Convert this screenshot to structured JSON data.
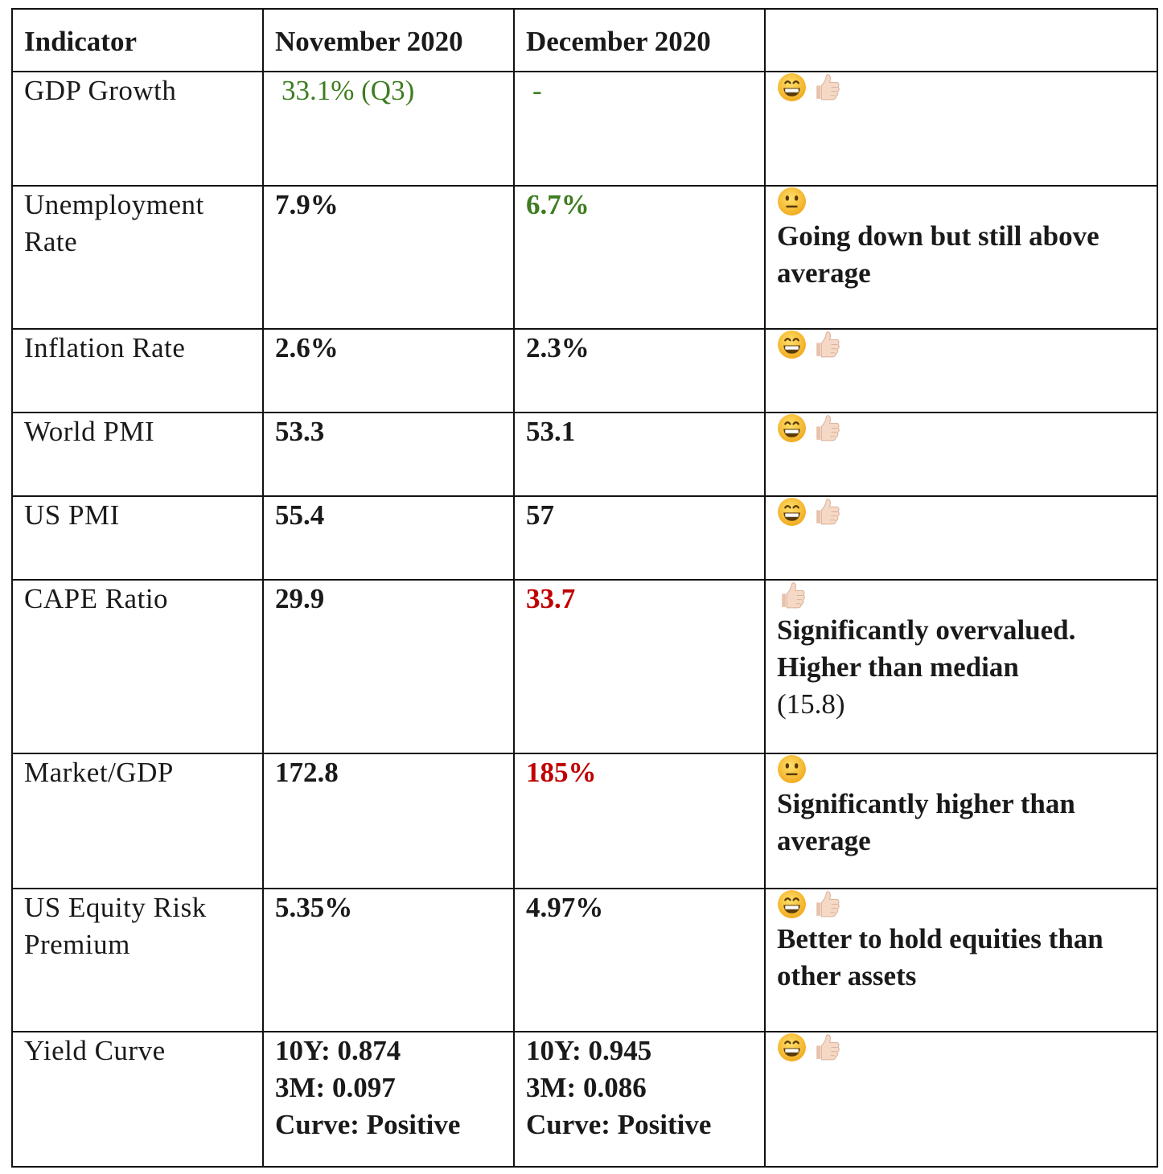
{
  "headers": [
    "Indicator",
    "November 2020",
    "December 2020",
    ""
  ],
  "rows": [
    {
      "indicator": "GDP Growth",
      "nov": "33.1% (Q3)",
      "dec": "-",
      "emojis": [
        "grin",
        "thumbs-up"
      ],
      "note": ""
    },
    {
      "indicator": "Unemployment Rate",
      "nov": "7.9%",
      "dec": "6.7%",
      "emojis": [
        "neutral"
      ],
      "note": "Going down but still above average"
    },
    {
      "indicator": "Inflation Rate",
      "nov": "2.6%",
      "dec": "2.3%",
      "emojis": [
        "grin",
        "thumbs-up"
      ],
      "note": ""
    },
    {
      "indicator": "World PMI",
      "nov": "53.3",
      "dec": "53.1",
      "emojis": [
        "grin",
        "thumbs-up"
      ],
      "note": ""
    },
    {
      "indicator": "US PMI",
      "nov": "55.4",
      "dec": "57",
      "emojis": [
        "grin",
        "thumbs-up"
      ],
      "note": ""
    },
    {
      "indicator": "CAPE Ratio",
      "nov": "29.9",
      "dec": "33.7",
      "emojis": [
        "thumbs-up"
      ],
      "note_line1": "Significantly overvalued.",
      "note_line2": "Higher than median",
      "note_line3": "(15.8)"
    },
    {
      "indicator": "Market/GDP",
      "nov": "172.8",
      "dec": "185%",
      "emojis": [
        "neutral"
      ],
      "note": "Significantly higher than average"
    },
    {
      "indicator": "US Equity Risk Premium",
      "nov": "5.35%",
      "dec": "4.97%",
      "emojis": [
        "grin",
        "thumbs-up"
      ],
      "note": "Better to hold equities than other assets"
    },
    {
      "indicator": "Yield Curve",
      "nov_lines": [
        "10Y: 0.874",
        "3M: 0.097",
        "Curve: Positive"
      ],
      "dec_lines": [
        "10Y: 0.945",
        "3M: 0.086",
        "Curve: Positive"
      ],
      "emojis": [
        "grin",
        "thumbs-up"
      ],
      "note": ""
    }
  ],
  "colors": {
    "positive": "#3e7d21",
    "negative": "#c00000",
    "text": "#1a1a1a",
    "emoji_face": "#f5c33b",
    "thumb": "#f6d8c6"
  }
}
